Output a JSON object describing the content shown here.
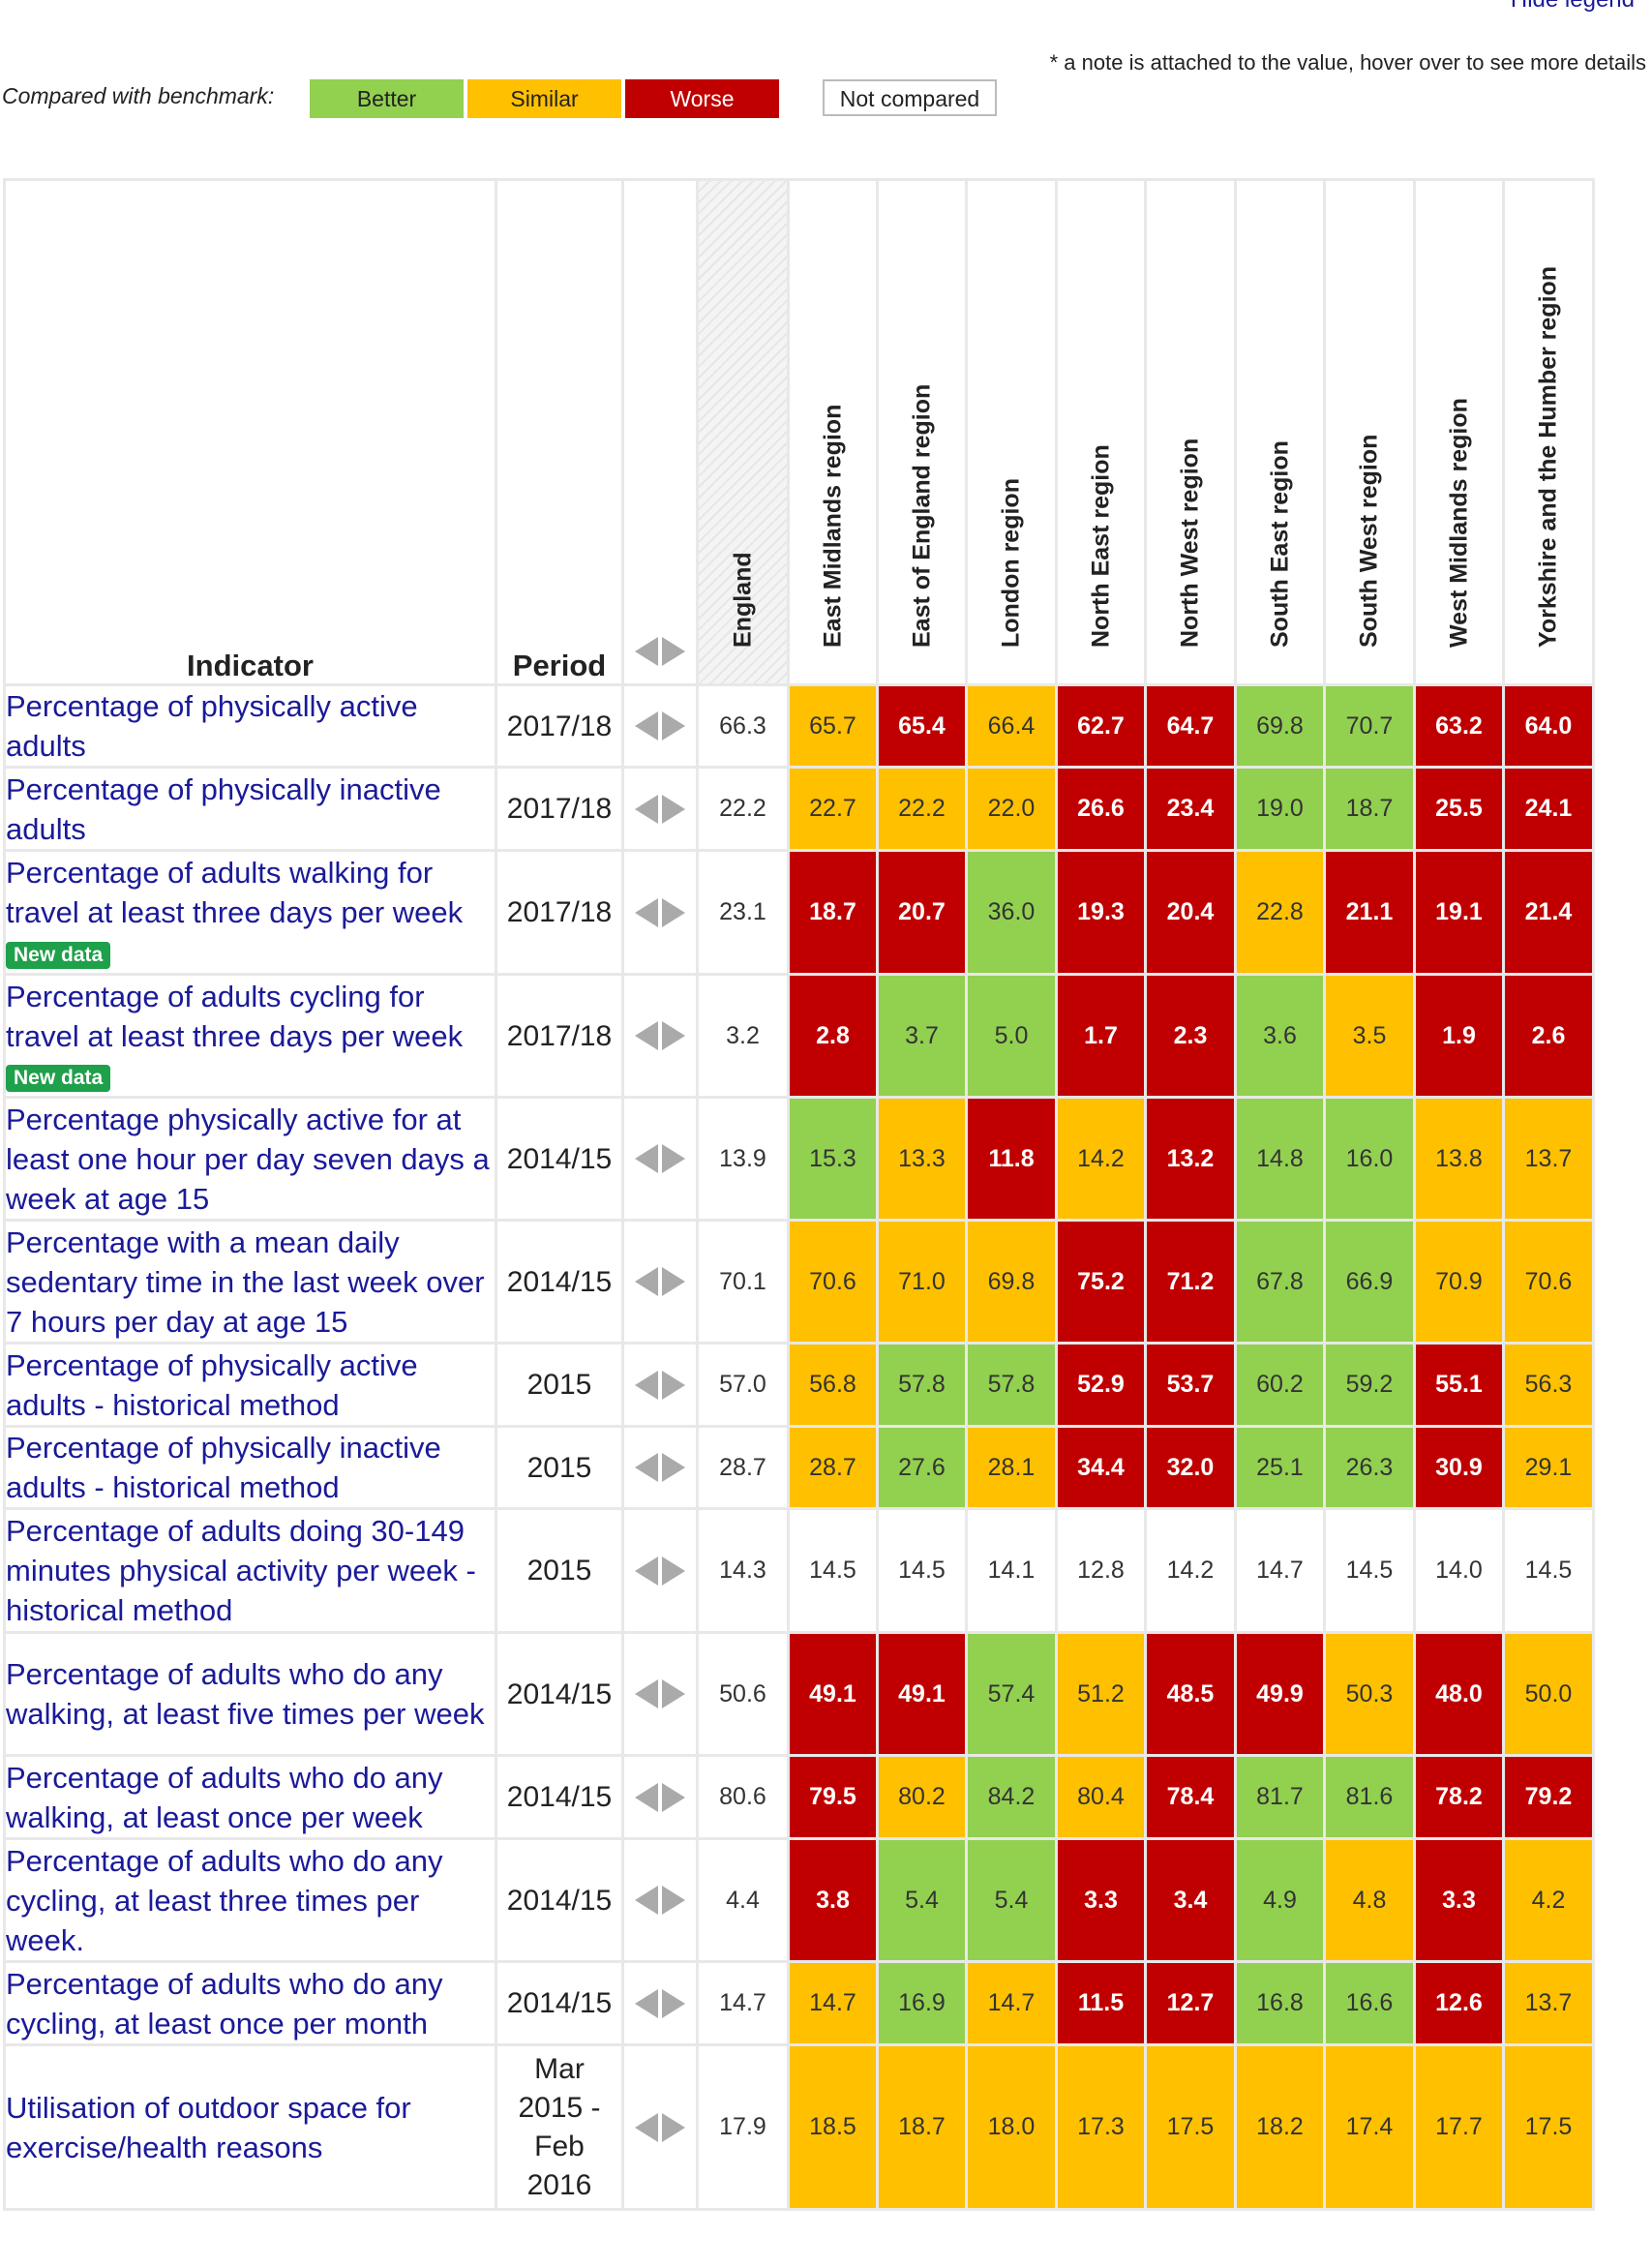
{
  "legend": {
    "hide_label": "Hide legend",
    "note": "* a note is attached to the value, hover over to see more details",
    "compared_label": "Compared with benchmark:",
    "better": "Better",
    "similar": "Similar",
    "worse": "Worse",
    "not_compared": "Not compared",
    "colors": {
      "better": "#92d050",
      "similar": "#ffc000",
      "worse": "#c00000",
      "not_compared": "#ffffff"
    }
  },
  "table": {
    "indicator_header": "Indicator",
    "period_header": "Period",
    "areas": [
      "England",
      "East Midlands region",
      "East of England region",
      "London region",
      "North East region",
      "North West region",
      "South East region",
      "South West region",
      "West Midlands region",
      "Yorkshire and the Humber region"
    ],
    "rows": [
      {
        "indicator": "Percentage of physically active adults",
        "period": "2017/18",
        "england": "66.3",
        "badge": "",
        "values": [
          [
            "65.7",
            "similar"
          ],
          [
            "65.4",
            "worse"
          ],
          [
            "66.4",
            "similar"
          ],
          [
            "62.7",
            "worse"
          ],
          [
            "64.7",
            "worse"
          ],
          [
            "69.8",
            "better"
          ],
          [
            "70.7",
            "better"
          ],
          [
            "63.2",
            "worse"
          ],
          [
            "64.0",
            "worse"
          ]
        ]
      },
      {
        "indicator": "Percentage of physically inactive adults",
        "period": "2017/18",
        "england": "22.2",
        "badge": "",
        "values": [
          [
            "22.7",
            "similar"
          ],
          [
            "22.2",
            "similar"
          ],
          [
            "22.0",
            "similar"
          ],
          [
            "26.6",
            "worse"
          ],
          [
            "23.4",
            "worse"
          ],
          [
            "19.0",
            "better"
          ],
          [
            "18.7",
            "better"
          ],
          [
            "25.5",
            "worse"
          ],
          [
            "24.1",
            "worse"
          ]
        ]
      },
      {
        "indicator": "Percentage of adults walking for travel at least three days per week",
        "period": "2017/18",
        "england": "23.1",
        "badge": "New data",
        "values": [
          [
            "18.7",
            "worse"
          ],
          [
            "20.7",
            "worse"
          ],
          [
            "36.0",
            "better"
          ],
          [
            "19.3",
            "worse"
          ],
          [
            "20.4",
            "worse"
          ],
          [
            "22.8",
            "similar"
          ],
          [
            "21.1",
            "worse"
          ],
          [
            "19.1",
            "worse"
          ],
          [
            "21.4",
            "worse"
          ]
        ]
      },
      {
        "indicator": "Percentage of adults cycling for travel at least three days per week",
        "period": "2017/18",
        "england": "3.2",
        "badge": "New data",
        "values": [
          [
            "2.8",
            "worse"
          ],
          [
            "3.7",
            "better"
          ],
          [
            "5.0",
            "better"
          ],
          [
            "1.7",
            "worse"
          ],
          [
            "2.3",
            "worse"
          ],
          [
            "3.6",
            "better"
          ],
          [
            "3.5",
            "similar"
          ],
          [
            "1.9",
            "worse"
          ],
          [
            "2.6",
            "worse"
          ]
        ]
      },
      {
        "indicator": "Percentage physically active for at least one hour per day seven days a week at age 15",
        "period": "2014/15",
        "england": "13.9",
        "badge": "",
        "values": [
          [
            "15.3",
            "better"
          ],
          [
            "13.3",
            "similar"
          ],
          [
            "11.8",
            "worse"
          ],
          [
            "14.2",
            "similar"
          ],
          [
            "13.2",
            "worse"
          ],
          [
            "14.8",
            "better"
          ],
          [
            "16.0",
            "better"
          ],
          [
            "13.8",
            "similar"
          ],
          [
            "13.7",
            "similar"
          ]
        ]
      },
      {
        "indicator": "Percentage with a mean daily sedentary time in the last week over 7 hours per day at age 15",
        "period": "2014/15",
        "england": "70.1",
        "badge": "",
        "values": [
          [
            "70.6",
            "similar"
          ],
          [
            "71.0",
            "similar"
          ],
          [
            "69.8",
            "similar"
          ],
          [
            "75.2",
            "worse"
          ],
          [
            "71.2",
            "worse"
          ],
          [
            "67.8",
            "better"
          ],
          [
            "66.9",
            "better"
          ],
          [
            "70.9",
            "similar"
          ],
          [
            "70.6",
            "similar"
          ]
        ]
      },
      {
        "indicator": "Percentage of physically active adults - historical method",
        "period": "2015",
        "england": "57.0",
        "badge": "",
        "values": [
          [
            "56.8",
            "similar"
          ],
          [
            "57.8",
            "better"
          ],
          [
            "57.8",
            "better"
          ],
          [
            "52.9",
            "worse"
          ],
          [
            "53.7",
            "worse"
          ],
          [
            "60.2",
            "better"
          ],
          [
            "59.2",
            "better"
          ],
          [
            "55.1",
            "worse"
          ],
          [
            "56.3",
            "similar"
          ]
        ]
      },
      {
        "indicator": "Percentage of physically inactive adults - historical method",
        "period": "2015",
        "england": "28.7",
        "badge": "",
        "values": [
          [
            "28.7",
            "similar"
          ],
          [
            "27.6",
            "better"
          ],
          [
            "28.1",
            "similar"
          ],
          [
            "34.4",
            "worse"
          ],
          [
            "32.0",
            "worse"
          ],
          [
            "25.1",
            "better"
          ],
          [
            "26.3",
            "better"
          ],
          [
            "30.9",
            "worse"
          ],
          [
            "29.1",
            "similar"
          ]
        ]
      },
      {
        "indicator": "Percentage of adults doing 30-149 minutes physical activity per week -historical method",
        "period": "2015",
        "england": "14.3",
        "badge": "",
        "values": [
          [
            "14.5",
            "none"
          ],
          [
            "14.5",
            "none"
          ],
          [
            "14.1",
            "none"
          ],
          [
            "12.8",
            "none"
          ],
          [
            "14.2",
            "none"
          ],
          [
            "14.7",
            "none"
          ],
          [
            "14.5",
            "none"
          ],
          [
            "14.0",
            "none"
          ],
          [
            "14.5",
            "none"
          ]
        ]
      },
      {
        "indicator": "Percentage of adults who do any walking, at least five times per week",
        "period": "2014/15",
        "england": "50.6",
        "badge": "",
        "values": [
          [
            "49.1",
            "worse"
          ],
          [
            "49.1",
            "worse"
          ],
          [
            "57.4",
            "better"
          ],
          [
            "51.2",
            "similar"
          ],
          [
            "48.5",
            "worse"
          ],
          [
            "49.9",
            "worse"
          ],
          [
            "50.3",
            "similar"
          ],
          [
            "48.0",
            "worse"
          ],
          [
            "50.0",
            "similar"
          ]
        ]
      },
      {
        "indicator": "Percentage of adults who do any walking, at least once per week",
        "period": "2014/15",
        "england": "80.6",
        "badge": "",
        "values": [
          [
            "79.5",
            "worse"
          ],
          [
            "80.2",
            "similar"
          ],
          [
            "84.2",
            "better"
          ],
          [
            "80.4",
            "similar"
          ],
          [
            "78.4",
            "worse"
          ],
          [
            "81.7",
            "better"
          ],
          [
            "81.6",
            "better"
          ],
          [
            "78.2",
            "worse"
          ],
          [
            "79.2",
            "worse"
          ]
        ]
      },
      {
        "indicator": "Percentage of adults who do any cycling, at least three times per week.",
        "period": "2014/15",
        "england": "4.4",
        "badge": "",
        "values": [
          [
            "3.8",
            "worse"
          ],
          [
            "5.4",
            "better"
          ],
          [
            "5.4",
            "better"
          ],
          [
            "3.3",
            "worse"
          ],
          [
            "3.4",
            "worse"
          ],
          [
            "4.9",
            "better"
          ],
          [
            "4.8",
            "similar"
          ],
          [
            "3.3",
            "worse"
          ],
          [
            "4.2",
            "similar"
          ]
        ]
      },
      {
        "indicator": "Percentage of adults who do any cycling, at least once per month",
        "period": "2014/15",
        "england": "14.7",
        "badge": "",
        "values": [
          [
            "14.7",
            "similar"
          ],
          [
            "16.9",
            "better"
          ],
          [
            "14.7",
            "similar"
          ],
          [
            "11.5",
            "worse"
          ],
          [
            "12.7",
            "worse"
          ],
          [
            "16.8",
            "better"
          ],
          [
            "16.6",
            "better"
          ],
          [
            "12.6",
            "worse"
          ],
          [
            "13.7",
            "similar"
          ]
        ]
      },
      {
        "indicator": "Utilisation of outdoor space for exercise/health reasons",
        "period": "Mar 2015 - Feb 2016",
        "england": "17.9",
        "badge": "",
        "values": [
          [
            "18.5",
            "similar"
          ],
          [
            "18.7",
            "similar"
          ],
          [
            "18.0",
            "similar"
          ],
          [
            "17.3",
            "similar"
          ],
          [
            "17.5",
            "similar"
          ],
          [
            "18.2",
            "similar"
          ],
          [
            "17.4",
            "similar"
          ],
          [
            "17.7",
            "similar"
          ],
          [
            "17.5",
            "similar"
          ]
        ]
      }
    ]
  }
}
